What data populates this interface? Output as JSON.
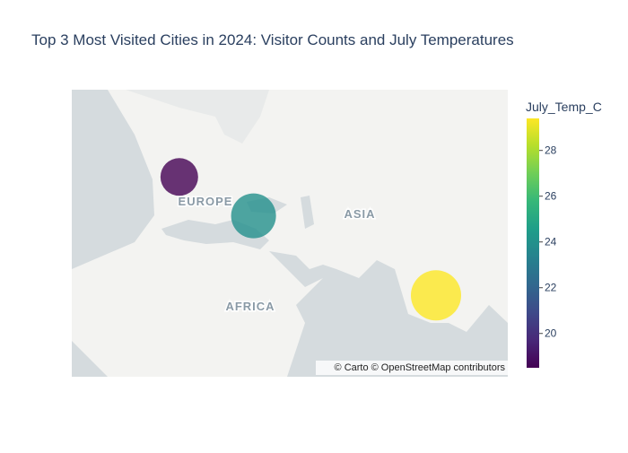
{
  "chart_data": {
    "type": "scatter_map",
    "title": "Top 3 Most Visited Cities in 2024: Visitor Counts and July Temperatures",
    "lat": [
      51.5,
      41.0,
      13.75
    ],
    "lon": [
      -0.1,
      29.0,
      100.5
    ],
    "size_values": [
      12800000,
      18200000,
      22800000
    ],
    "color_values": [
      18.5,
      23.95,
      29.4
    ],
    "colorscale": "Viridis",
    "colorbar_title": "July_Temp_C",
    "clim": [
      18.5,
      29.4
    ],
    "cticks": [
      20,
      22,
      24,
      26,
      28
    ],
    "center": {
      "lat": 35.67,
      "lon": 43.2
    },
    "zoom": 1,
    "map_labels": [
      "EUROPE",
      "ASIA",
      "AFRICA"
    ],
    "attribution": "© Carto © OpenStreetMap contributors"
  }
}
